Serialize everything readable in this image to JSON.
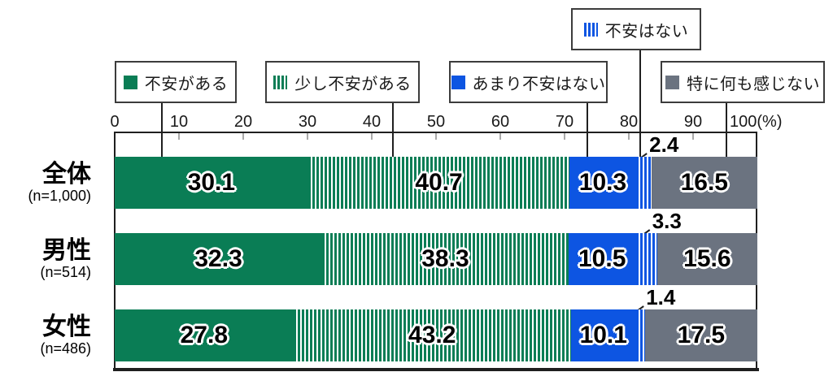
{
  "chart_data": {
    "type": "bar",
    "variant": "horizontal-stacked-percent",
    "unit": "(%)",
    "axis": {
      "min": 0,
      "max": 100,
      "tick_interval": 10,
      "tick_labels": [
        "0",
        "10",
        "20",
        "30",
        "40",
        "50",
        "60",
        "70",
        "80",
        "90",
        "100(%)"
      ]
    },
    "legend": [
      {
        "label": "不安がある",
        "pattern": "solid",
        "color": "#0a7d55"
      },
      {
        "label": "少し不安がある",
        "pattern": "striped",
        "color": "#0a7d55"
      },
      {
        "label": "あまり不安はない",
        "pattern": "solid",
        "color": "#0d55e2"
      },
      {
        "label": "不安はない",
        "pattern": "striped",
        "color": "#0d55e2"
      },
      {
        "label": "特に何も感じない",
        "pattern": "solid",
        "color": "#6b7380"
      }
    ],
    "rows": [
      {
        "label": "全体",
        "n_label": "(n=1,000)",
        "values": [
          "30.1",
          "40.7",
          "10.3",
          "2.4",
          "16.5"
        ]
      },
      {
        "label": "男性",
        "n_label": "(n=514)",
        "values": [
          "32.3",
          "38.3",
          "10.5",
          "3.3",
          "15.6"
        ]
      },
      {
        "label": "女性",
        "n_label": "(n=486)",
        "values": [
          "27.8",
          "43.2",
          "10.1",
          "1.4",
          "17.5"
        ]
      }
    ]
  },
  "colors": {
    "frame": "#1f1f1f",
    "tick": "#a9a9a9",
    "stripe_gap": "#ffffff",
    "legend_border": "#3c3c3c"
  }
}
